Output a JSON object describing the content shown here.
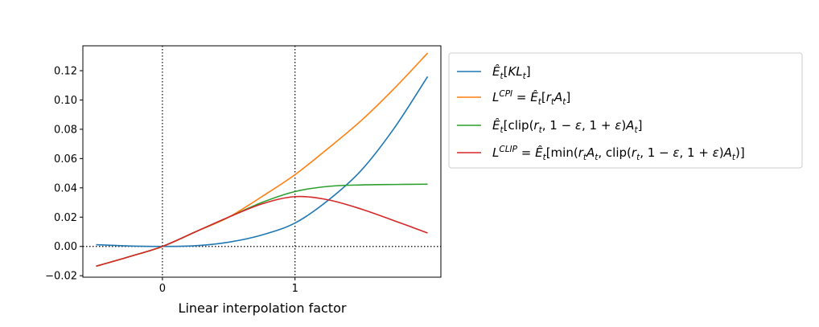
{
  "chart_data": {
    "type": "line",
    "title": "",
    "xlabel": "Linear interpolation factor",
    "ylabel": "",
    "xlim": [
      -0.6,
      2.1
    ],
    "ylim": [
      -0.021,
      0.137
    ],
    "xticks": [
      0,
      1
    ],
    "xtick_labels": [
      "0",
      "1"
    ],
    "yticks": [
      -0.02,
      0.0,
      0.02,
      0.04,
      0.06,
      0.08,
      0.1,
      0.12
    ],
    "ytick_labels": [
      "−0.02",
      "0.00",
      "0.02",
      "0.04",
      "0.06",
      "0.08",
      "0.10",
      "0.12"
    ],
    "reference_lines": [
      {
        "orientation": "vertical",
        "value": 0,
        "style": "dotted"
      },
      {
        "orientation": "vertical",
        "value": 1,
        "style": "dotted"
      },
      {
        "orientation": "horizontal",
        "value": 0,
        "style": "dotted"
      }
    ],
    "grid": false,
    "legend_position": "outside-right-top",
    "x": [
      -0.5,
      -0.25,
      0.0,
      0.25,
      0.5,
      0.75,
      1.0,
      1.25,
      1.5,
      1.75,
      2.0
    ],
    "series": [
      {
        "name": "ÊtKLt",
        "color": "#1f77b4",
        "values": [
          0.0012,
          0.0003,
          0.0,
          0.0005,
          0.0029,
          0.0078,
          0.016,
          0.0315,
          0.052,
          0.081,
          0.116
        ]
      },
      {
        "name": "LCPI = Êt[rtAt]",
        "color": "#ff7f0e",
        "values": [
          -0.0135,
          -0.007,
          0.0,
          0.01,
          0.02,
          0.034,
          0.049,
          0.067,
          0.086,
          0.108,
          0.132
        ]
      },
      {
        "name": "Êt[clip(rt, 1−ε, 1+ε)At]",
        "color": "#2ca02c",
        "values": [
          -0.0135,
          -0.007,
          0.0,
          0.01,
          0.02,
          0.03,
          0.0375,
          0.041,
          0.042,
          0.0423,
          0.0425
        ]
      },
      {
        "name": "LCLIP = Êt[min(rtAt, clip(rt, 1−ε, 1+ε)At)]",
        "color": "#d62728",
        "values": [
          -0.0135,
          -0.007,
          0.0,
          0.01,
          0.02,
          0.029,
          0.034,
          0.0318,
          0.0255,
          0.0175,
          0.0092
        ]
      }
    ]
  }
}
